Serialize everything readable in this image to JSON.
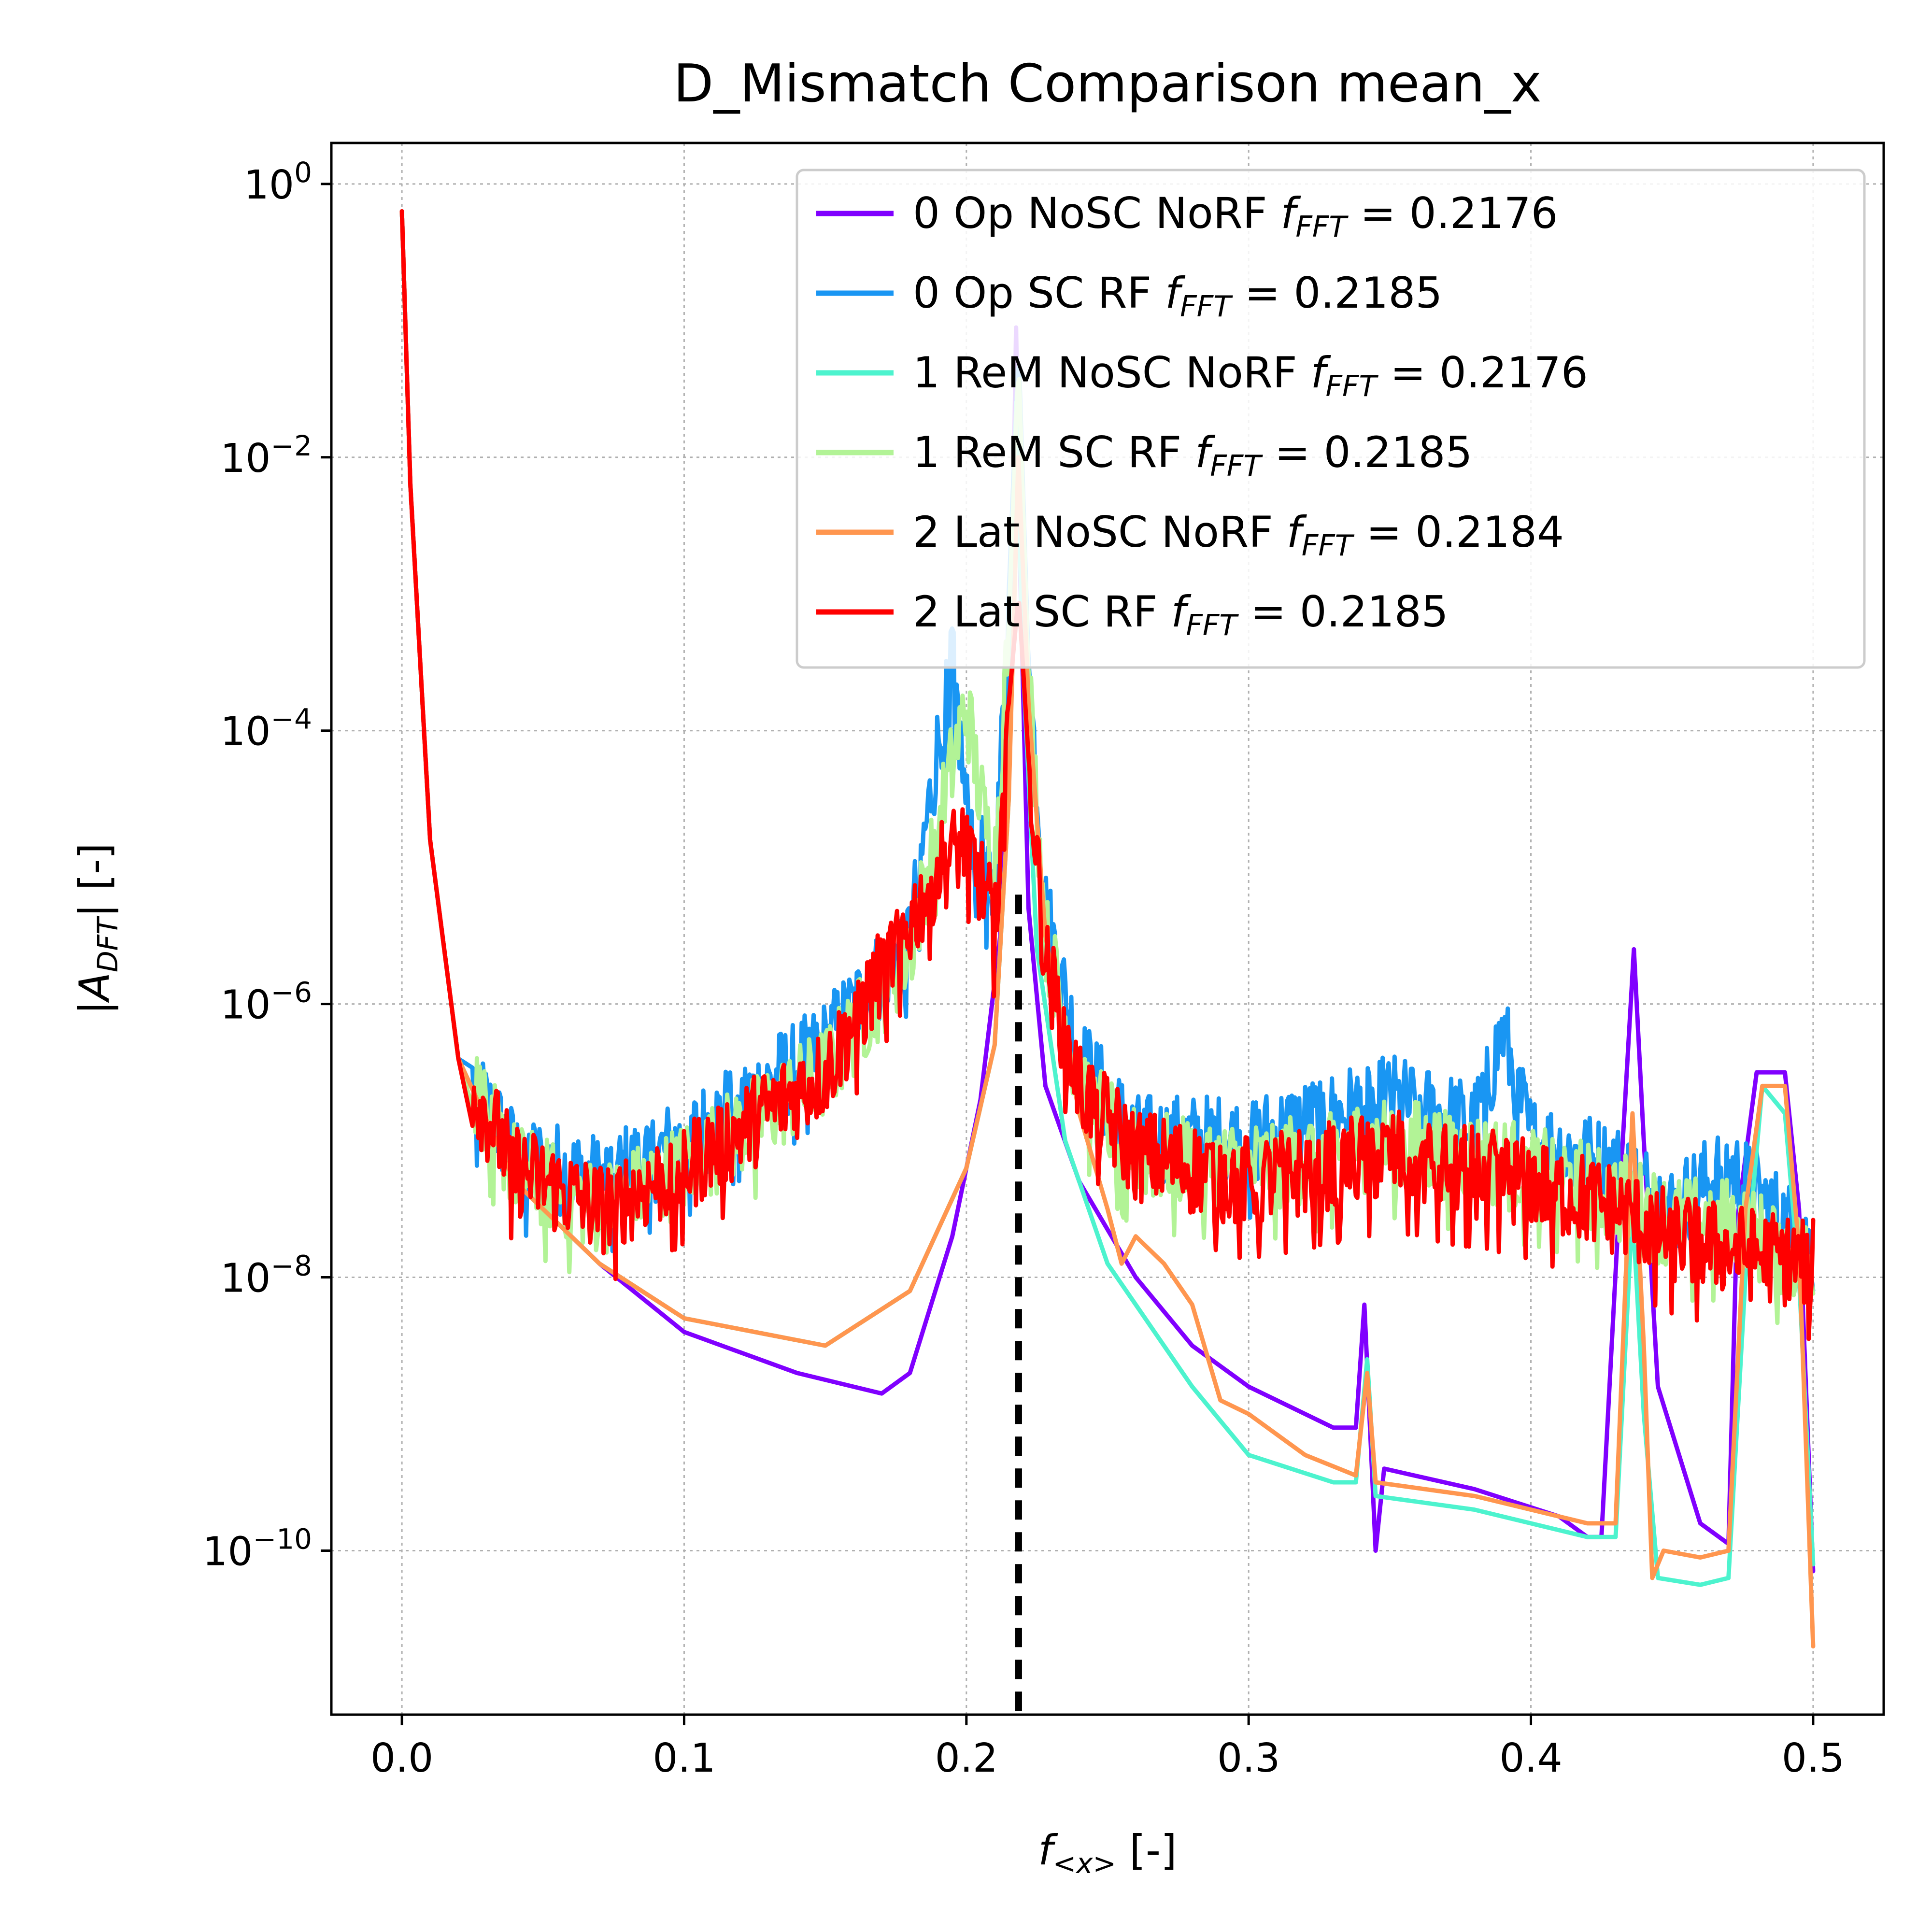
{
  "chart_data": {
    "type": "line",
    "title": "D_Mismatch Comparison mean_x",
    "xlabel": "f_<x> [-]",
    "ylabel": "|A_DFT| [-]",
    "yscale": "log",
    "xlim": [
      -0.025,
      0.525
    ],
    "ylim_exponent": [
      -11.2,
      0.3
    ],
    "grid": true,
    "legend_location": "upper right",
    "x_ticks": [
      0.0,
      0.1,
      0.2,
      0.3,
      0.4,
      0.5
    ],
    "x_tick_labels": [
      "0.0",
      "0.1",
      "0.2",
      "0.3",
      "0.4",
      "0.5"
    ],
    "y_tick_exponents": [
      0,
      -2,
      -4,
      -6,
      -8,
      -10
    ],
    "y_tick_labels": [
      {
        "base": "10",
        "exp": "0"
      },
      {
        "base": "10",
        "exp": "−2"
      },
      {
        "base": "10",
        "exp": "−4"
      },
      {
        "base": "10",
        "exp": "−6"
      },
      {
        "base": "10",
        "exp": "−8"
      },
      {
        "base": "10",
        "exp": "−10"
      }
    ],
    "reference_line": {
      "x": 0.2185,
      "style": "dashed",
      "color": "#000000"
    },
    "series": [
      {
        "name": "0 Op NoSC NoRF",
        "f_fft": "0.2176",
        "color": "#8000ff",
        "noisy": false,
        "points": [
          [
            0.0,
            -0.2
          ],
          [
            0.003,
            -2.2
          ],
          [
            0.01,
            -4.8
          ],
          [
            0.02,
            -6.4
          ],
          [
            0.04,
            -7.3
          ],
          [
            0.07,
            -7.9
          ],
          [
            0.1,
            -8.4
          ],
          [
            0.14,
            -8.7
          ],
          [
            0.17,
            -8.85
          ],
          [
            0.18,
            -8.7
          ],
          [
            0.195,
            -7.7
          ],
          [
            0.205,
            -6.7
          ],
          [
            0.212,
            -5.5
          ],
          [
            0.216,
            -3.2
          ],
          [
            0.2176,
            -1.05
          ],
          [
            0.219,
            -2.8
          ],
          [
            0.222,
            -5.3
          ],
          [
            0.228,
            -6.6
          ],
          [
            0.24,
            -7.3
          ],
          [
            0.26,
            -8.0
          ],
          [
            0.28,
            -8.5
          ],
          [
            0.3,
            -8.8
          ],
          [
            0.33,
            -9.1
          ],
          [
            0.338,
            -9.1
          ],
          [
            0.341,
            -8.2
          ],
          [
            0.345,
            -10.0
          ],
          [
            0.348,
            -9.4
          ],
          [
            0.38,
            -9.55
          ],
          [
            0.41,
            -9.75
          ],
          [
            0.42,
            -9.9
          ],
          [
            0.425,
            -9.9
          ],
          [
            0.432,
            -7.2
          ],
          [
            0.4365,
            -5.6
          ],
          [
            0.44,
            -7.0
          ],
          [
            0.445,
            -8.8
          ],
          [
            0.46,
            -9.8
          ],
          [
            0.47,
            -9.95
          ],
          [
            0.473,
            -7.6
          ],
          [
            0.48,
            -6.5
          ],
          [
            0.49,
            -6.5
          ],
          [
            0.495,
            -7.5
          ],
          [
            0.5,
            -10.15
          ]
        ]
      },
      {
        "name": "0 Op SC RF",
        "f_fft": "0.2185",
        "color": "#1996f3",
        "noisy": true,
        "points": [
          [
            0.0,
            -0.2
          ],
          [
            0.003,
            -2.2
          ],
          [
            0.01,
            -4.8
          ],
          [
            0.02,
            -6.4
          ],
          [
            0.04,
            -7.1
          ],
          [
            0.07,
            -7.3
          ],
          [
            0.1,
            -7.0
          ],
          [
            0.15,
            -6.3
          ],
          [
            0.18,
            -5.5
          ],
          [
            0.195,
            -3.4
          ],
          [
            0.2,
            -4.6
          ],
          [
            0.21,
            -5.2
          ],
          [
            0.215,
            -3.0
          ],
          [
            0.2185,
            -1.2
          ],
          [
            0.222,
            -3.5
          ],
          [
            0.228,
            -5.3
          ],
          [
            0.24,
            -6.4
          ],
          [
            0.26,
            -7.0
          ],
          [
            0.3,
            -7.0
          ],
          [
            0.35,
            -6.7
          ],
          [
            0.38,
            -6.9
          ],
          [
            0.39,
            -6.2
          ],
          [
            0.4,
            -7.0
          ],
          [
            0.43,
            -7.2
          ],
          [
            0.45,
            -7.5
          ],
          [
            0.47,
            -7.2
          ],
          [
            0.48,
            -7.4
          ],
          [
            0.5,
            -7.8
          ]
        ]
      },
      {
        "name": "1 ReM NoSC NoRF",
        "f_fft": "0.2176",
        "color": "#4df3ce",
        "noisy": false,
        "points": [
          [
            0.0,
            -0.2
          ],
          [
            0.003,
            -2.2
          ],
          [
            0.01,
            -4.8
          ],
          [
            0.02,
            -6.4
          ],
          [
            0.04,
            -7.3
          ],
          [
            0.07,
            -7.9
          ],
          [
            0.1,
            -8.3
          ],
          [
            0.15,
            -8.5
          ],
          [
            0.18,
            -8.1
          ],
          [
            0.2,
            -7.2
          ],
          [
            0.21,
            -6.3
          ],
          [
            0.215,
            -4.5
          ],
          [
            0.2176,
            -1.6
          ],
          [
            0.22,
            -3.5
          ],
          [
            0.225,
            -5.6
          ],
          [
            0.235,
            -7.0
          ],
          [
            0.25,
            -7.9
          ],
          [
            0.26,
            -8.2
          ],
          [
            0.28,
            -8.8
          ],
          [
            0.3,
            -9.3
          ],
          [
            0.33,
            -9.5
          ],
          [
            0.338,
            -9.5
          ],
          [
            0.342,
            -8.6
          ],
          [
            0.345,
            -9.6
          ],
          [
            0.38,
            -9.7
          ],
          [
            0.42,
            -9.9
          ],
          [
            0.43,
            -9.9
          ],
          [
            0.436,
            -7.5
          ],
          [
            0.44,
            -9.0
          ],
          [
            0.445,
            -10.2
          ],
          [
            0.46,
            -10.25
          ],
          [
            0.47,
            -10.2
          ],
          [
            0.476,
            -8.0
          ],
          [
            0.482,
            -6.6
          ],
          [
            0.49,
            -6.8
          ],
          [
            0.495,
            -8.0
          ],
          [
            0.5,
            -10.1
          ]
        ]
      },
      {
        "name": "1 ReM SC RF",
        "f_fft": "0.2185",
        "color": "#b2f396",
        "noisy": true,
        "points": [
          [
            0.0,
            -0.2
          ],
          [
            0.003,
            -2.2
          ],
          [
            0.01,
            -4.8
          ],
          [
            0.02,
            -6.4
          ],
          [
            0.04,
            -7.2
          ],
          [
            0.07,
            -7.5
          ],
          [
            0.1,
            -7.2
          ],
          [
            0.15,
            -6.5
          ],
          [
            0.18,
            -5.6
          ],
          [
            0.2,
            -3.8
          ],
          [
            0.205,
            -4.5
          ],
          [
            0.21,
            -5.0
          ],
          [
            0.215,
            -3.2
          ],
          [
            0.2185,
            -1.3
          ],
          [
            0.222,
            -3.6
          ],
          [
            0.228,
            -5.5
          ],
          [
            0.24,
            -6.6
          ],
          [
            0.26,
            -7.1
          ],
          [
            0.3,
            -7.2
          ],
          [
            0.35,
            -7.0
          ],
          [
            0.4,
            -7.2
          ],
          [
            0.43,
            -7.4
          ],
          [
            0.45,
            -7.6
          ],
          [
            0.47,
            -7.6
          ],
          [
            0.5,
            -7.9
          ]
        ]
      },
      {
        "name": "2 Lat NoSC NoRF",
        "f_fft": "0.2184",
        "color": "#ff964f",
        "noisy": false,
        "points": [
          [
            0.0,
            -0.2
          ],
          [
            0.003,
            -2.2
          ],
          [
            0.01,
            -4.8
          ],
          [
            0.02,
            -6.4
          ],
          [
            0.04,
            -7.3
          ],
          [
            0.07,
            -7.9
          ],
          [
            0.1,
            -8.3
          ],
          [
            0.15,
            -8.5
          ],
          [
            0.18,
            -8.1
          ],
          [
            0.2,
            -7.2
          ],
          [
            0.21,
            -6.3
          ],
          [
            0.215,
            -4.5
          ],
          [
            0.2184,
            -2.0
          ],
          [
            0.222,
            -3.8
          ],
          [
            0.228,
            -5.5
          ],
          [
            0.24,
            -6.8
          ],
          [
            0.25,
            -7.5
          ],
          [
            0.255,
            -7.9
          ],
          [
            0.26,
            -7.7
          ],
          [
            0.27,
            -7.9
          ],
          [
            0.28,
            -8.2
          ],
          [
            0.29,
            -8.9
          ],
          [
            0.3,
            -9.0
          ],
          [
            0.32,
            -9.3
          ],
          [
            0.338,
            -9.45
          ],
          [
            0.342,
            -8.7
          ],
          [
            0.345,
            -9.5
          ],
          [
            0.38,
            -9.6
          ],
          [
            0.42,
            -9.8
          ],
          [
            0.43,
            -9.8
          ],
          [
            0.436,
            -6.8
          ],
          [
            0.44,
            -8.5
          ],
          [
            0.443,
            -10.2
          ],
          [
            0.447,
            -10.0
          ],
          [
            0.46,
            -10.05
          ],
          [
            0.47,
            -10.0
          ],
          [
            0.476,
            -7.5
          ],
          [
            0.482,
            -6.6
          ],
          [
            0.49,
            -6.6
          ],
          [
            0.495,
            -7.8
          ],
          [
            0.5,
            -10.7
          ]
        ]
      },
      {
        "name": "2 Lat SC RF",
        "f_fft": "0.2185",
        "color": "#ff0000",
        "noisy": true,
        "points": [
          [
            0.0,
            -0.2
          ],
          [
            0.003,
            -2.2
          ],
          [
            0.01,
            -4.8
          ],
          [
            0.02,
            -6.4
          ],
          [
            0.04,
            -7.2
          ],
          [
            0.07,
            -7.5
          ],
          [
            0.1,
            -7.2
          ],
          [
            0.15,
            -6.5
          ],
          [
            0.18,
            -5.4
          ],
          [
            0.19,
            -5.0
          ],
          [
            0.2,
            -4.8
          ],
          [
            0.205,
            -5.1
          ],
          [
            0.21,
            -5.4
          ],
          [
            0.215,
            -3.8
          ],
          [
            0.2185,
            -3.0
          ],
          [
            0.222,
            -4.2
          ],
          [
            0.228,
            -5.7
          ],
          [
            0.24,
            -6.6
          ],
          [
            0.26,
            -7.1
          ],
          [
            0.3,
            -7.3
          ],
          [
            0.35,
            -7.1
          ],
          [
            0.4,
            -7.3
          ],
          [
            0.43,
            -7.5
          ],
          [
            0.45,
            -7.7
          ],
          [
            0.47,
            -7.8
          ],
          [
            0.5,
            -7.9
          ]
        ]
      }
    ]
  }
}
